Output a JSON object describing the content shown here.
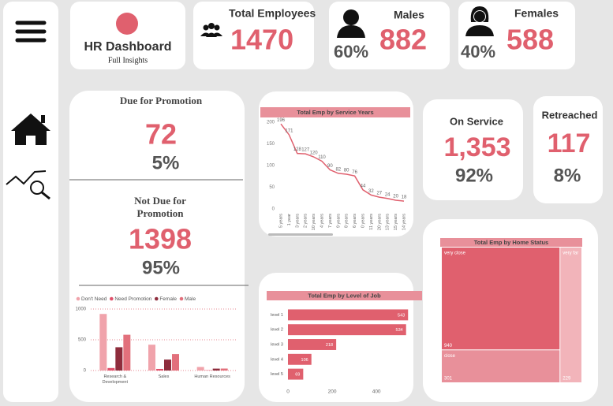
{
  "header": {
    "title": "HR Dashboard",
    "subtitle": "Full Insights"
  },
  "kpis": {
    "total": {
      "label": "Total Employees",
      "value": "1470"
    },
    "males": {
      "label": "Males",
      "value": "882",
      "share": "60%"
    },
    "females": {
      "label": "Females",
      "value": "588",
      "share": "40%"
    },
    "due": {
      "label": "Due for Promotion",
      "value": "72",
      "share": "5%"
    },
    "not_due": {
      "label": "Not Due for Promotion",
      "value": "1398",
      "share": "95%"
    },
    "on_service": {
      "label": "On Service",
      "value": "1,353",
      "share": "92%"
    },
    "retreached": {
      "label": "Retreached",
      "value": "117",
      "share": "8%"
    }
  },
  "chart_data": [
    {
      "type": "line",
      "title": "Total Emp by Service Years",
      "color": "#e0606e",
      "categories": [
        "5 years",
        "1 year",
        "3 years",
        "2 years",
        "10 years",
        "4 years",
        "7 years",
        "9 years",
        "8 years",
        "6 years",
        "0 years",
        "11 years",
        "20 years",
        "13 years",
        "15 years",
        "14 years"
      ],
      "values": [
        196,
        171,
        128,
        127,
        120,
        110,
        90,
        82,
        80,
        76,
        44,
        32,
        27,
        24,
        20,
        18
      ],
      "ylim": [
        0,
        200
      ],
      "yticks": [
        0,
        50,
        100,
        150,
        200
      ]
    },
    {
      "type": "barh",
      "title": "Total Emp by Level of Job",
      "color": "#e0606e",
      "categories": [
        "level 1",
        "level 2",
        "level 3",
        "level 4",
        "level 5"
      ],
      "values": [
        543,
        534,
        218,
        106,
        69
      ],
      "xlim": [
        0,
        560
      ],
      "xticks": [
        0,
        200,
        400
      ]
    },
    {
      "type": "bar",
      "categories": [
        "Research & Development",
        "Sales",
        "Human Resources"
      ],
      "series": [
        {
          "name": "Don't Need",
          "color": "#f0a3ab",
          "values": [
            920,
            420,
            58
          ]
        },
        {
          "name": "Need Promotion",
          "color": "#e0506a",
          "values": [
            41,
            26,
            5
          ]
        },
        {
          "name": "Female",
          "color": "#8e2c3c",
          "values": [
            379,
            178,
            31
          ]
        },
        {
          "name": "Male",
          "color": "#e2707c",
          "values": [
            582,
            268,
            32
          ]
        }
      ],
      "ylim": [
        0,
        1000
      ],
      "yticks": [
        0,
        500,
        1000
      ],
      "grid": true
    },
    {
      "type": "treemap",
      "title": "Total Emp by Home Status",
      "categories": [
        "very close",
        "close",
        "very far"
      ],
      "values": [
        940,
        301,
        229
      ],
      "colors": [
        "#e0606e",
        "#e8909a",
        "#f2b4ba"
      ]
    }
  ]
}
